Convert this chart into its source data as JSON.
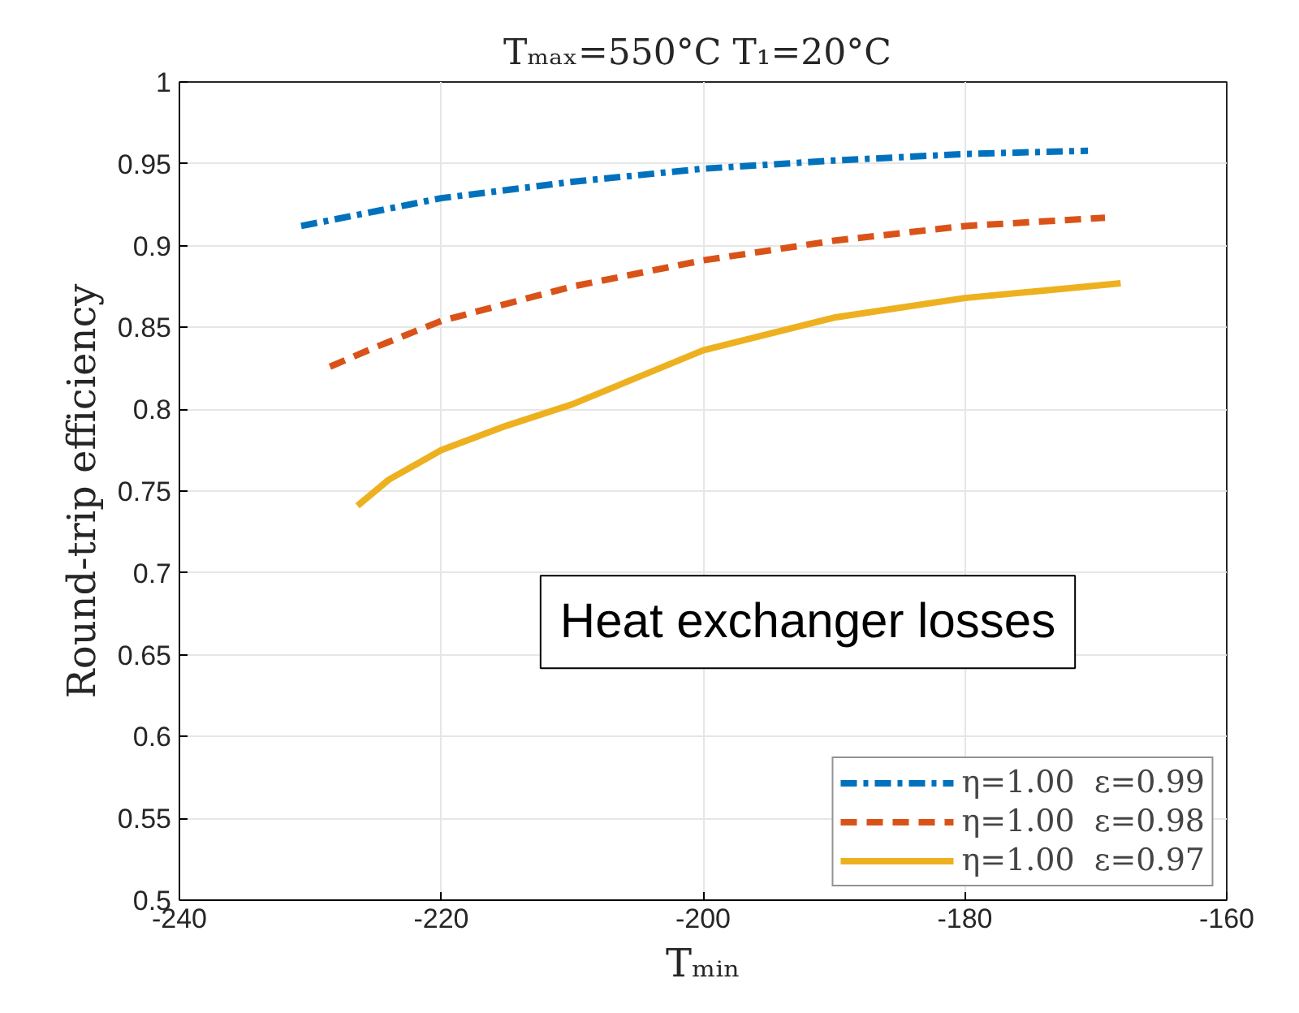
{
  "chart_data": {
    "type": "line",
    "title": "Tₘₐₓ=550°C  T₁=20°C",
    "xlabel": "Tₘᵢₙ",
    "ylabel": "Round-trip efficiency",
    "xlim": [
      -240,
      -160
    ],
    "xticks": [
      -240,
      -220,
      -200,
      -180,
      -160
    ],
    "ylim": [
      0.5,
      1
    ],
    "yticks": [
      0.5,
      0.55,
      0.6,
      0.65,
      0.7,
      0.75,
      0.8,
      0.85,
      0.9,
      0.95,
      1
    ],
    "grid": true,
    "legend": "bottom right",
    "annotations": [
      "Heat exchanger losses"
    ],
    "series": [
      {
        "name": "η=1.00  ε=0.99",
        "color": "#0072bd",
        "line_style": "dashdot",
        "x": [
          -230.7,
          -225,
          -220,
          -210,
          -200,
          -190,
          -180,
          -170.6
        ],
        "values": [
          0.912,
          0.921,
          0.929,
          0.939,
          0.947,
          0.952,
          0.956,
          0.958
        ]
      },
      {
        "name": "η=1.00  ε=0.98",
        "color": "#d95319",
        "line_style": "dashed",
        "x": [
          -228.5,
          -225,
          -220,
          -210,
          -200,
          -190,
          -180,
          -169.3
        ],
        "values": [
          0.826,
          0.838,
          0.854,
          0.875,
          0.891,
          0.903,
          0.912,
          0.917
        ]
      },
      {
        "name": "η=1.00  ε=0.97",
        "color": "#edb120",
        "line_style": "solid",
        "x": [
          -226.4,
          -224,
          -220,
          -215,
          -210,
          -200,
          -190,
          -180,
          -168.1
        ],
        "values": [
          0.741,
          0.757,
          0.775,
          0.79,
          0.803,
          0.836,
          0.856,
          0.868,
          0.877
        ]
      }
    ]
  }
}
